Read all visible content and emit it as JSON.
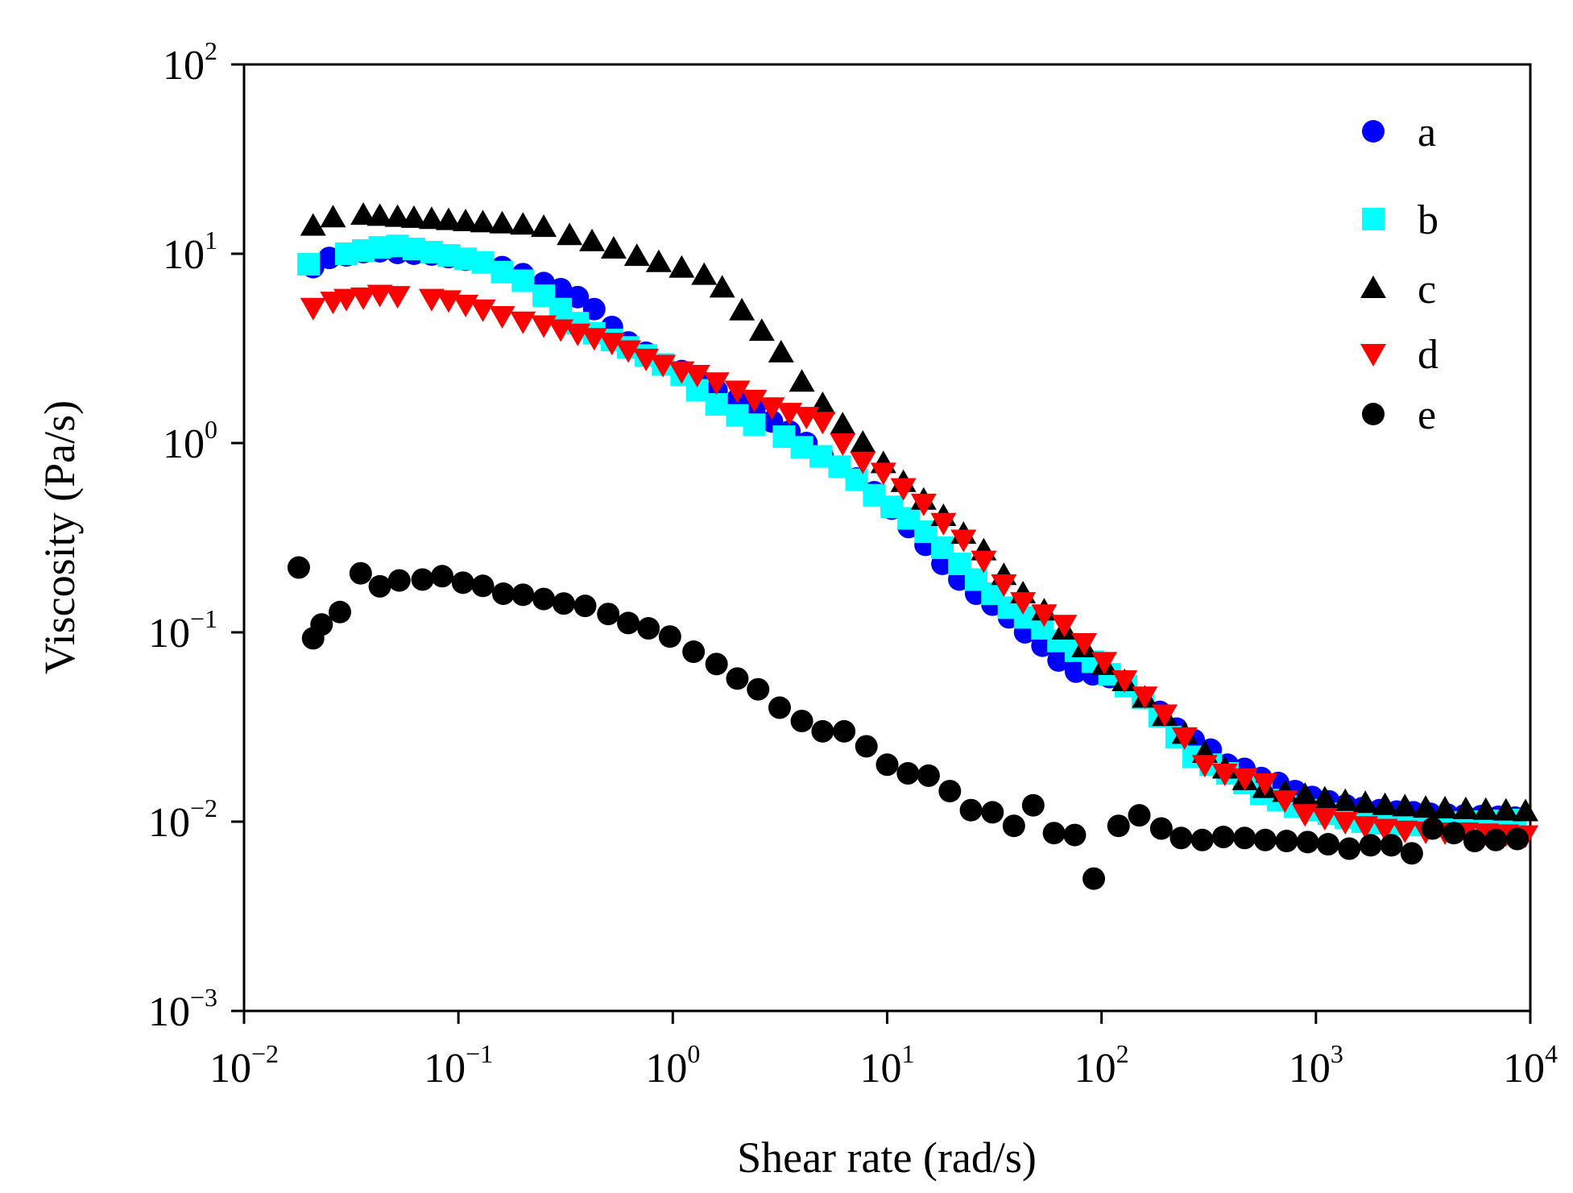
{
  "chart_data": {
    "type": "scatter",
    "title": "",
    "xlabel": "Shear rate (rad/s)",
    "ylabel": "Viscosity (Pa/s)",
    "xscale": "log",
    "yscale": "log",
    "xlim": [
      0.01,
      10000
    ],
    "ylim": [
      0.001,
      100
    ],
    "x_ticks": [
      {
        "base": "10",
        "exp": "−2",
        "value": 0.01
      },
      {
        "base": "10",
        "exp": "−1",
        "value": 0.1
      },
      {
        "base": "10",
        "exp": "0",
        "value": 1
      },
      {
        "base": "10",
        "exp": "1",
        "value": 10
      },
      {
        "base": "10",
        "exp": "2",
        "value": 100
      },
      {
        "base": "10",
        "exp": "3",
        "value": 1000
      },
      {
        "base": "10",
        "exp": "4",
        "value": 10000
      }
    ],
    "y_ticks": [
      {
        "base": "10",
        "exp": "−3",
        "value": 0.001
      },
      {
        "base": "10",
        "exp": "−2",
        "value": 0.01
      },
      {
        "base": "10",
        "exp": "−1",
        "value": 0.1
      },
      {
        "base": "10",
        "exp": "0",
        "value": 1
      },
      {
        "base": "10",
        "exp": "1",
        "value": 10
      },
      {
        "base": "10",
        "exp": "2",
        "value": 100
      }
    ],
    "legend_position": "top-right",
    "grid": false,
    "series": [
      {
        "name": "a",
        "marker": "circle",
        "color": "#0000FF",
        "x": [
          0.021,
          0.025,
          0.03,
          0.036,
          0.043,
          0.052,
          0.062,
          0.075,
          0.09,
          0.108,
          0.13,
          0.16,
          0.2,
          0.25,
          0.3,
          0.36,
          0.43,
          0.52,
          0.62,
          0.75,
          0.9,
          1.1,
          1.3,
          1.6,
          2,
          2.4,
          2.9,
          3.5,
          4.2,
          5,
          6,
          7.2,
          8.7,
          10.5,
          12.6,
          15.1,
          18.1,
          21.7,
          26,
          31,
          37,
          44,
          53,
          63,
          76,
          91,
          109,
          130,
          156,
          187,
          224,
          269,
          323,
          387,
          464,
          556,
          667,
          800,
          960,
          1150,
          1380,
          1650,
          1980,
          2380,
          2850,
          3420,
          4100,
          4920,
          5900,
          7080,
          8500
        ],
        "y": [
          8.5,
          9.5,
          9.8,
          10.2,
          10.3,
          10.1,
          10,
          9.9,
          9.6,
          9.3,
          9,
          8.5,
          7.8,
          7,
          6.5,
          5.9,
          5.1,
          4.1,
          3.4,
          3.0,
          2.6,
          2.4,
          2.2,
          1.9,
          1.7,
          1.5,
          1.3,
          1.15,
          1.0,
          0.85,
          0.75,
          0.65,
          0.55,
          0.45,
          0.36,
          0.29,
          0.23,
          0.19,
          0.16,
          0.14,
          0.12,
          0.1,
          0.085,
          0.071,
          0.062,
          0.06,
          0.058,
          0.055,
          0.045,
          0.038,
          0.031,
          0.027,
          0.024,
          0.02,
          0.019,
          0.017,
          0.016,
          0.0145,
          0.0135,
          0.0128,
          0.0122,
          0.0118,
          0.0115,
          0.0113,
          0.0112,
          0.011,
          0.0109,
          0.0108,
          0.0107,
          0.0106,
          0.0105
        ]
      },
      {
        "name": "b",
        "marker": "square",
        "color": "#00FFFF",
        "x": [
          0.02,
          0.03,
          0.036,
          0.043,
          0.052,
          0.062,
          0.075,
          0.09,
          0.108,
          0.13,
          0.16,
          0.2,
          0.25,
          0.3,
          0.36,
          0.43,
          0.52,
          0.62,
          0.75,
          0.9,
          1.1,
          1.3,
          1.6,
          2,
          2.4,
          3.3,
          4,
          4.9,
          6,
          7.2,
          8.7,
          10.5,
          12.6,
          15.1,
          18.1,
          21.7,
          26,
          31,
          37,
          44,
          53,
          63,
          76,
          91,
          109,
          130,
          156,
          187,
          224,
          269,
          323,
          387,
          464,
          556,
          667,
          800,
          960,
          1150,
          1380,
          1650,
          1980,
          2380,
          2850,
          3420,
          4100,
          4920,
          5900,
          7080,
          8500
        ],
        "y": [
          8.8,
          10.0,
          10.4,
          10.8,
          11.0,
          10.6,
          10.2,
          9.8,
          9.4,
          9.0,
          8.0,
          7.2,
          6.0,
          5.1,
          4.3,
          3.8,
          3.5,
          3.2,
          2.9,
          2.6,
          2.3,
          1.9,
          1.6,
          1.4,
          1.25,
          1.08,
          0.95,
          0.85,
          0.75,
          0.64,
          0.53,
          0.46,
          0.4,
          0.34,
          0.28,
          0.23,
          0.19,
          0.16,
          0.135,
          0.12,
          0.105,
          0.09,
          0.08,
          0.07,
          0.06,
          0.052,
          0.045,
          0.036,
          0.028,
          0.022,
          0.02,
          0.018,
          0.016,
          0.014,
          0.013,
          0.012,
          0.0115,
          0.011,
          0.0105,
          0.01,
          0.0098,
          0.0097,
          0.0096,
          0.0097,
          0.0098,
          0.0099,
          0.01,
          0.0101,
          0.0102
        ]
      },
      {
        "name": "c",
        "marker": "triangle-up",
        "color": "#000000",
        "x": [
          0.021,
          0.026,
          0.036,
          0.043,
          0.052,
          0.062,
          0.075,
          0.09,
          0.108,
          0.13,
          0.16,
          0.2,
          0.25,
          0.33,
          0.42,
          0.53,
          0.68,
          0.86,
          1.1,
          1.4,
          1.7,
          2.1,
          2.6,
          3.2,
          4,
          5,
          6.2,
          7.7,
          9.6,
          11.9,
          14.8,
          18.3,
          22.7,
          28.2,
          35,
          43,
          54,
          67,
          83,
          103,
          128,
          159,
          197,
          244,
          303,
          376,
          466,
          578,
          717,
          889,
          1100,
          1370,
          1700,
          2100,
          2600,
          3250,
          4000,
          5000,
          6200,
          7700,
          9500
        ],
        "y": [
          14,
          15.5,
          16,
          15.8,
          15.6,
          15.4,
          15.2,
          15.0,
          14.8,
          14.6,
          14.4,
          14.2,
          13.8,
          12.5,
          11.6,
          10.6,
          9.7,
          9.0,
          8.4,
          7.7,
          6.6,
          5.0,
          3.9,
          3.0,
          2.1,
          1.6,
          1.25,
          1.0,
          0.78,
          0.62,
          0.5,
          0.41,
          0.33,
          0.27,
          0.2,
          0.16,
          0.13,
          0.103,
          0.083,
          0.067,
          0.055,
          0.045,
          0.036,
          0.029,
          0.023,
          0.019,
          0.0165,
          0.015,
          0.0143,
          0.0138,
          0.0132,
          0.0128,
          0.0125,
          0.0122,
          0.012,
          0.0118,
          0.0117,
          0.0116,
          0.0115,
          0.0114,
          0.0113
        ]
      },
      {
        "name": "d",
        "marker": "triangle-down",
        "color": "#FF0000",
        "x": [
          0.021,
          0.026,
          0.03,
          0.036,
          0.043,
          0.052,
          0.075,
          0.09,
          0.108,
          0.13,
          0.16,
          0.2,
          0.25,
          0.3,
          0.36,
          0.43,
          0.52,
          0.62,
          0.75,
          0.9,
          1.1,
          1.3,
          1.6,
          2,
          2.4,
          2.9,
          3.5,
          4.2,
          5,
          6.2,
          7.7,
          9.6,
          11.9,
          14.8,
          18.3,
          22.7,
          28.2,
          35,
          43,
          54,
          67,
          83,
          103,
          128,
          159,
          197,
          244,
          303,
          376,
          466,
          578,
          717,
          889,
          1100,
          1370,
          1700,
          2100,
          2600,
          3250,
          4000,
          5000,
          6200,
          7700,
          9500
        ],
        "y": [
          5.2,
          5.6,
          5.8,
          5.9,
          6.1,
          6.0,
          5.8,
          5.7,
          5.4,
          5.1,
          4.7,
          4.4,
          4.2,
          4.0,
          3.8,
          3.6,
          3.4,
          3.1,
          2.8,
          2.6,
          2.4,
          2.3,
          2.1,
          1.9,
          1.7,
          1.55,
          1.45,
          1.38,
          1.3,
          1.0,
          0.8,
          0.7,
          0.58,
          0.48,
          0.38,
          0.31,
          0.24,
          0.18,
          0.145,
          0.125,
          0.11,
          0.088,
          0.07,
          0.056,
          0.046,
          0.037,
          0.028,
          0.02,
          0.018,
          0.017,
          0.016,
          0.013,
          0.011,
          0.0105,
          0.01,
          0.0095,
          0.0092,
          0.009,
          0.0089,
          0.0088,
          0.0088,
          0.0087,
          0.0086,
          0.0085
        ]
      },
      {
        "name": "e",
        "marker": "circle",
        "color": "#000000",
        "x": [
          0.018,
          0.021,
          0.023,
          0.028,
          0.035,
          0.043,
          0.053,
          0.068,
          0.084,
          0.105,
          0.13,
          0.162,
          0.2,
          0.25,
          0.31,
          0.39,
          0.5,
          0.62,
          0.77,
          0.97,
          1.25,
          1.6,
          2.0,
          2.5,
          3.15,
          4,
          5,
          6.3,
          8,
          10,
          12.5,
          15.6,
          19.6,
          24.6,
          31,
          39,
          48,
          60,
          75,
          92,
          120,
          150,
          190,
          235,
          295,
          370,
          465,
          580,
          730,
          915,
          1140,
          1430,
          1800,
          2250,
          2800,
          3500,
          4400,
          5500,
          6900,
          8700
        ],
        "y": [
          0.22,
          0.093,
          0.11,
          0.128,
          0.205,
          0.175,
          0.188,
          0.19,
          0.198,
          0.183,
          0.176,
          0.16,
          0.158,
          0.15,
          0.142,
          0.138,
          0.125,
          0.112,
          0.105,
          0.095,
          0.079,
          0.068,
          0.057,
          0.05,
          0.04,
          0.034,
          0.03,
          0.03,
          0.025,
          0.02,
          0.018,
          0.0175,
          0.0145,
          0.0115,
          0.0112,
          0.0095,
          0.0122,
          0.0087,
          0.0085,
          0.005,
          0.0095,
          0.0108,
          0.0092,
          0.0082,
          0.008,
          0.0083,
          0.0082,
          0.008,
          0.0079,
          0.0078,
          0.0076,
          0.0072,
          0.0075,
          0.0075,
          0.0068,
          0.0092,
          0.0087,
          0.0079,
          0.008,
          0.0081
        ]
      }
    ]
  }
}
